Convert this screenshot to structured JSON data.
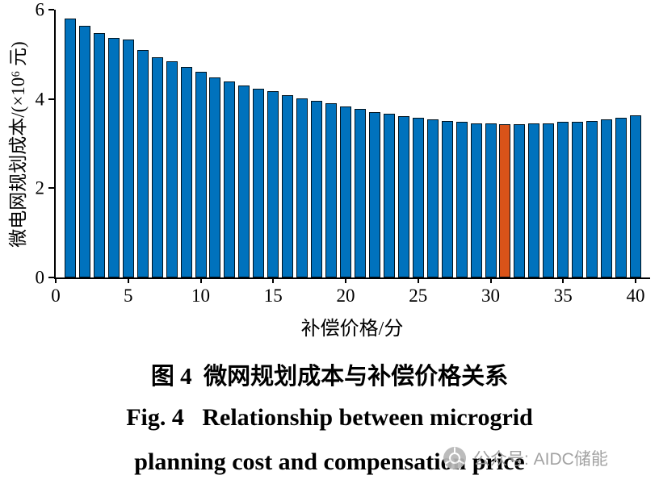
{
  "figure": {
    "y_axis_label": "微电网规划成本/(×10⁶ 元)",
    "x_axis_label": "补偿价格/分",
    "caption_cn": "图 4  微网规划成本与补偿价格关系",
    "caption_en_line1": "Fig. 4   Relationship between microgrid",
    "caption_en_line2": "planning cost and compensation price",
    "watermark_text": "公众号: AIDC储能"
  },
  "chart_data": {
    "type": "bar",
    "title": "",
    "xlabel": "补偿价格/分",
    "ylabel": "微电网规划成本/(×10⁶ 元)",
    "x": [
      1,
      2,
      3,
      4,
      5,
      6,
      7,
      8,
      9,
      10,
      11,
      12,
      13,
      14,
      15,
      16,
      17,
      18,
      19,
      20,
      21,
      22,
      23,
      24,
      25,
      26,
      27,
      28,
      29,
      30,
      31,
      32,
      33,
      34,
      35,
      36,
      37,
      38,
      39,
      40
    ],
    "values": [
      5.8,
      5.63,
      5.48,
      5.36,
      5.33,
      5.1,
      4.94,
      4.85,
      4.71,
      4.6,
      4.49,
      4.39,
      4.31,
      4.23,
      4.18,
      4.09,
      4.02,
      3.96,
      3.9,
      3.83,
      3.77,
      3.71,
      3.66,
      3.61,
      3.57,
      3.54,
      3.51,
      3.48,
      3.46,
      3.45,
      3.43,
      3.44,
      3.45,
      3.46,
      3.48,
      3.49,
      3.51,
      3.54,
      3.58,
      3.63
    ],
    "xlim": [
      0,
      41
    ],
    "ylim": [
      0,
      6
    ],
    "x_ticks": [
      0,
      5,
      10,
      15,
      20,
      25,
      30,
      35,
      40
    ],
    "y_ticks": [
      0,
      2,
      4,
      6
    ],
    "bar_color": "#0072BD",
    "bar_edge_color": "#00131f",
    "highlight_index": 30,
    "highlight_x": 31,
    "highlight_color": "#D95319",
    "grid": false,
    "legend": false,
    "legend_position": "none"
  }
}
